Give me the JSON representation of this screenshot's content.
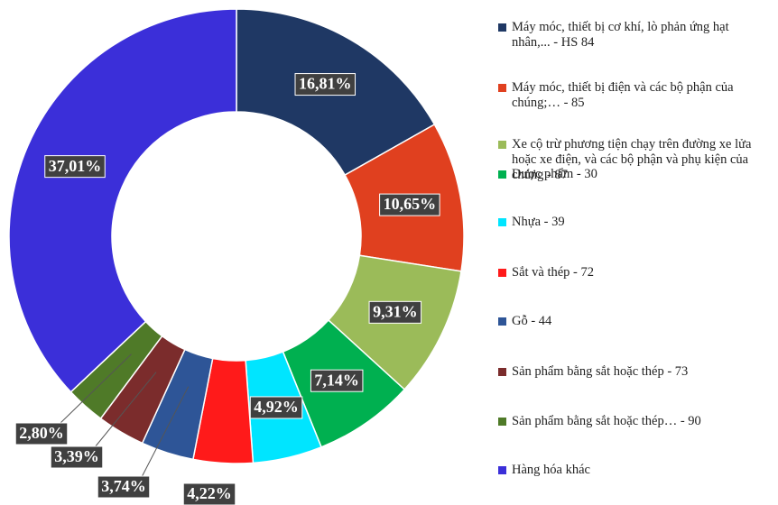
{
  "chart_data": {
    "type": "pie",
    "categories": [
      "Máy móc, thiết bị cơ khí, lò phản ứng hạt nhân,... -  HS 84",
      "Máy móc, thiết bị điện và các bộ phận của chúng;… - 85",
      "Xe cộ trừ phương tiện chạy trên đường xe lửa hoặc xe điện, và các bộ phận và phụ kiện của chúng - 87",
      "Dược phẩm - 30",
      "Nhựa - 39",
      "Sắt và thép - 72",
      "Gỗ - 44",
      "Sản phẩm bằng sắt hoặc thép - 73",
      "Sản phẩm bằng sắt hoặc thép… - 90",
      "Hàng hóa khác"
    ],
    "values": [
      16.81,
      10.65,
      9.31,
      7.14,
      4.92,
      4.22,
      3.74,
      3.39,
      2.8,
      37.01
    ],
    "value_labels": [
      "16,81%",
      "10,65%",
      "9,31%",
      "7,14%",
      "4,92%",
      "4,22%",
      "3,74%",
      "3,39%",
      "2,80%",
      "37,01%"
    ],
    "colors": [
      "#1f3864",
      "#e0401f",
      "#9bbb59",
      "#00b050",
      "#00e5ff",
      "#ff1a1a",
      "#2e5597",
      "#7b2c2c",
      "#4f7a28",
      "#3b2fd9"
    ],
    "legend": "right"
  }
}
